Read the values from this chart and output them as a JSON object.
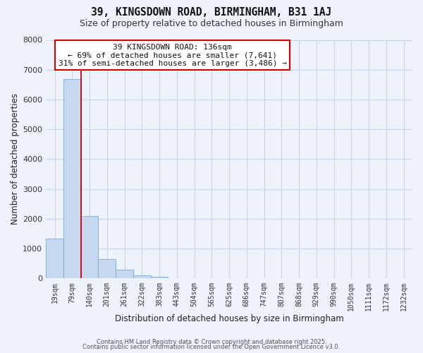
{
  "title_line1": "39, KINGSDOWN ROAD, BIRMINGHAM, B31 1AJ",
  "title_line2": "Size of property relative to detached houses in Birmingham",
  "xlabel": "Distribution of detached houses by size in Birmingham",
  "ylabel": "Number of detached properties",
  "bar_labels": [
    "19sqm",
    "79sqm",
    "140sqm",
    "201sqm",
    "261sqm",
    "322sqm",
    "383sqm",
    "443sqm",
    "504sqm",
    "565sqm",
    "625sqm",
    "686sqm",
    "747sqm",
    "807sqm",
    "868sqm",
    "929sqm",
    "990sqm",
    "1050sqm",
    "1111sqm",
    "1172sqm",
    "1232sqm"
  ],
  "bar_values": [
    1340,
    6680,
    2090,
    640,
    300,
    110,
    60,
    0,
    0,
    0,
    0,
    0,
    0,
    0,
    0,
    0,
    0,
    0,
    0,
    0,
    0
  ],
  "bar_color": "#c5d8f0",
  "bar_edge_color": "#7aaad4",
  "vline_color": "#cc0000",
  "vline_x_idx": 1.5,
  "ylim": [
    0,
    8000
  ],
  "yticks": [
    0,
    1000,
    2000,
    3000,
    4000,
    5000,
    6000,
    7000,
    8000
  ],
  "annotation_title": "39 KINGSDOWN ROAD: 136sqm",
  "annotation_line2": "← 69% of detached houses are smaller (7,641)",
  "annotation_line3": "31% of semi-detached houses are larger (3,486) →",
  "annotation_box_facecolor": "#ffffff",
  "annotation_box_edgecolor": "#cc0000",
  "grid_color": "#c8d4e8",
  "bg_color": "#edf2fb",
  "plot_bg_color": "#edf2fb",
  "footer1": "Contains HM Land Registry data © Crown copyright and database right 2025.",
  "footer2": "Contains public sector information licensed under the Open Government Licence v3.0.",
  "title_fontsize": 10.5,
  "subtitle_fontsize": 9,
  "tick_fontsize": 7,
  "ylabel_fontsize": 8.5,
  "xlabel_fontsize": 8.5,
  "annotation_fontsize": 8,
  "footer_fontsize": 6
}
